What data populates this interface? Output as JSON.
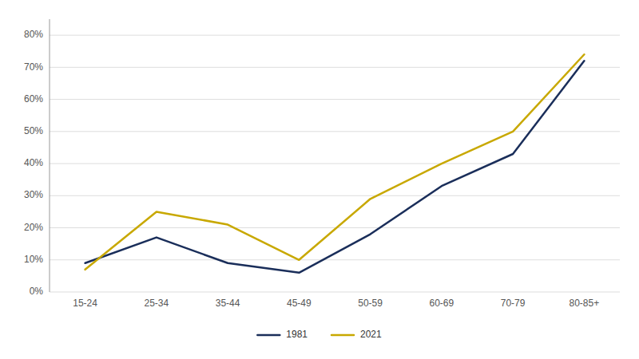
{
  "chart_data": {
    "type": "line",
    "categories": [
      "15-24",
      "25-34",
      "35-44",
      "45-49",
      "50-59",
      "60-69",
      "70-79",
      "80-85+"
    ],
    "series": [
      {
        "name": "1981",
        "color": "#1a2e5a",
        "values": [
          0.09,
          0.17,
          0.09,
          0.06,
          0.18,
          0.33,
          0.43,
          0.72
        ]
      },
      {
        "name": "2021",
        "color": "#c8a800",
        "values": [
          0.07,
          0.25,
          0.21,
          0.1,
          0.29,
          0.4,
          0.5,
          0.74
        ]
      }
    ],
    "ylim": [
      0,
      0.85
    ],
    "yticks": [
      {
        "value": 0,
        "label": "0%"
      },
      {
        "value": 0.1,
        "label": "10%"
      },
      {
        "value": 0.2,
        "label": "20%"
      },
      {
        "value": 0.3,
        "label": "30%"
      },
      {
        "value": 0.4,
        "label": "40%"
      },
      {
        "value": 0.5,
        "label": "50%"
      },
      {
        "value": 0.6,
        "label": "60%"
      },
      {
        "value": 0.7,
        "label": "70%"
      },
      {
        "value": 0.8,
        "label": "80%"
      }
    ],
    "grid": true,
    "legend": "bottom"
  }
}
